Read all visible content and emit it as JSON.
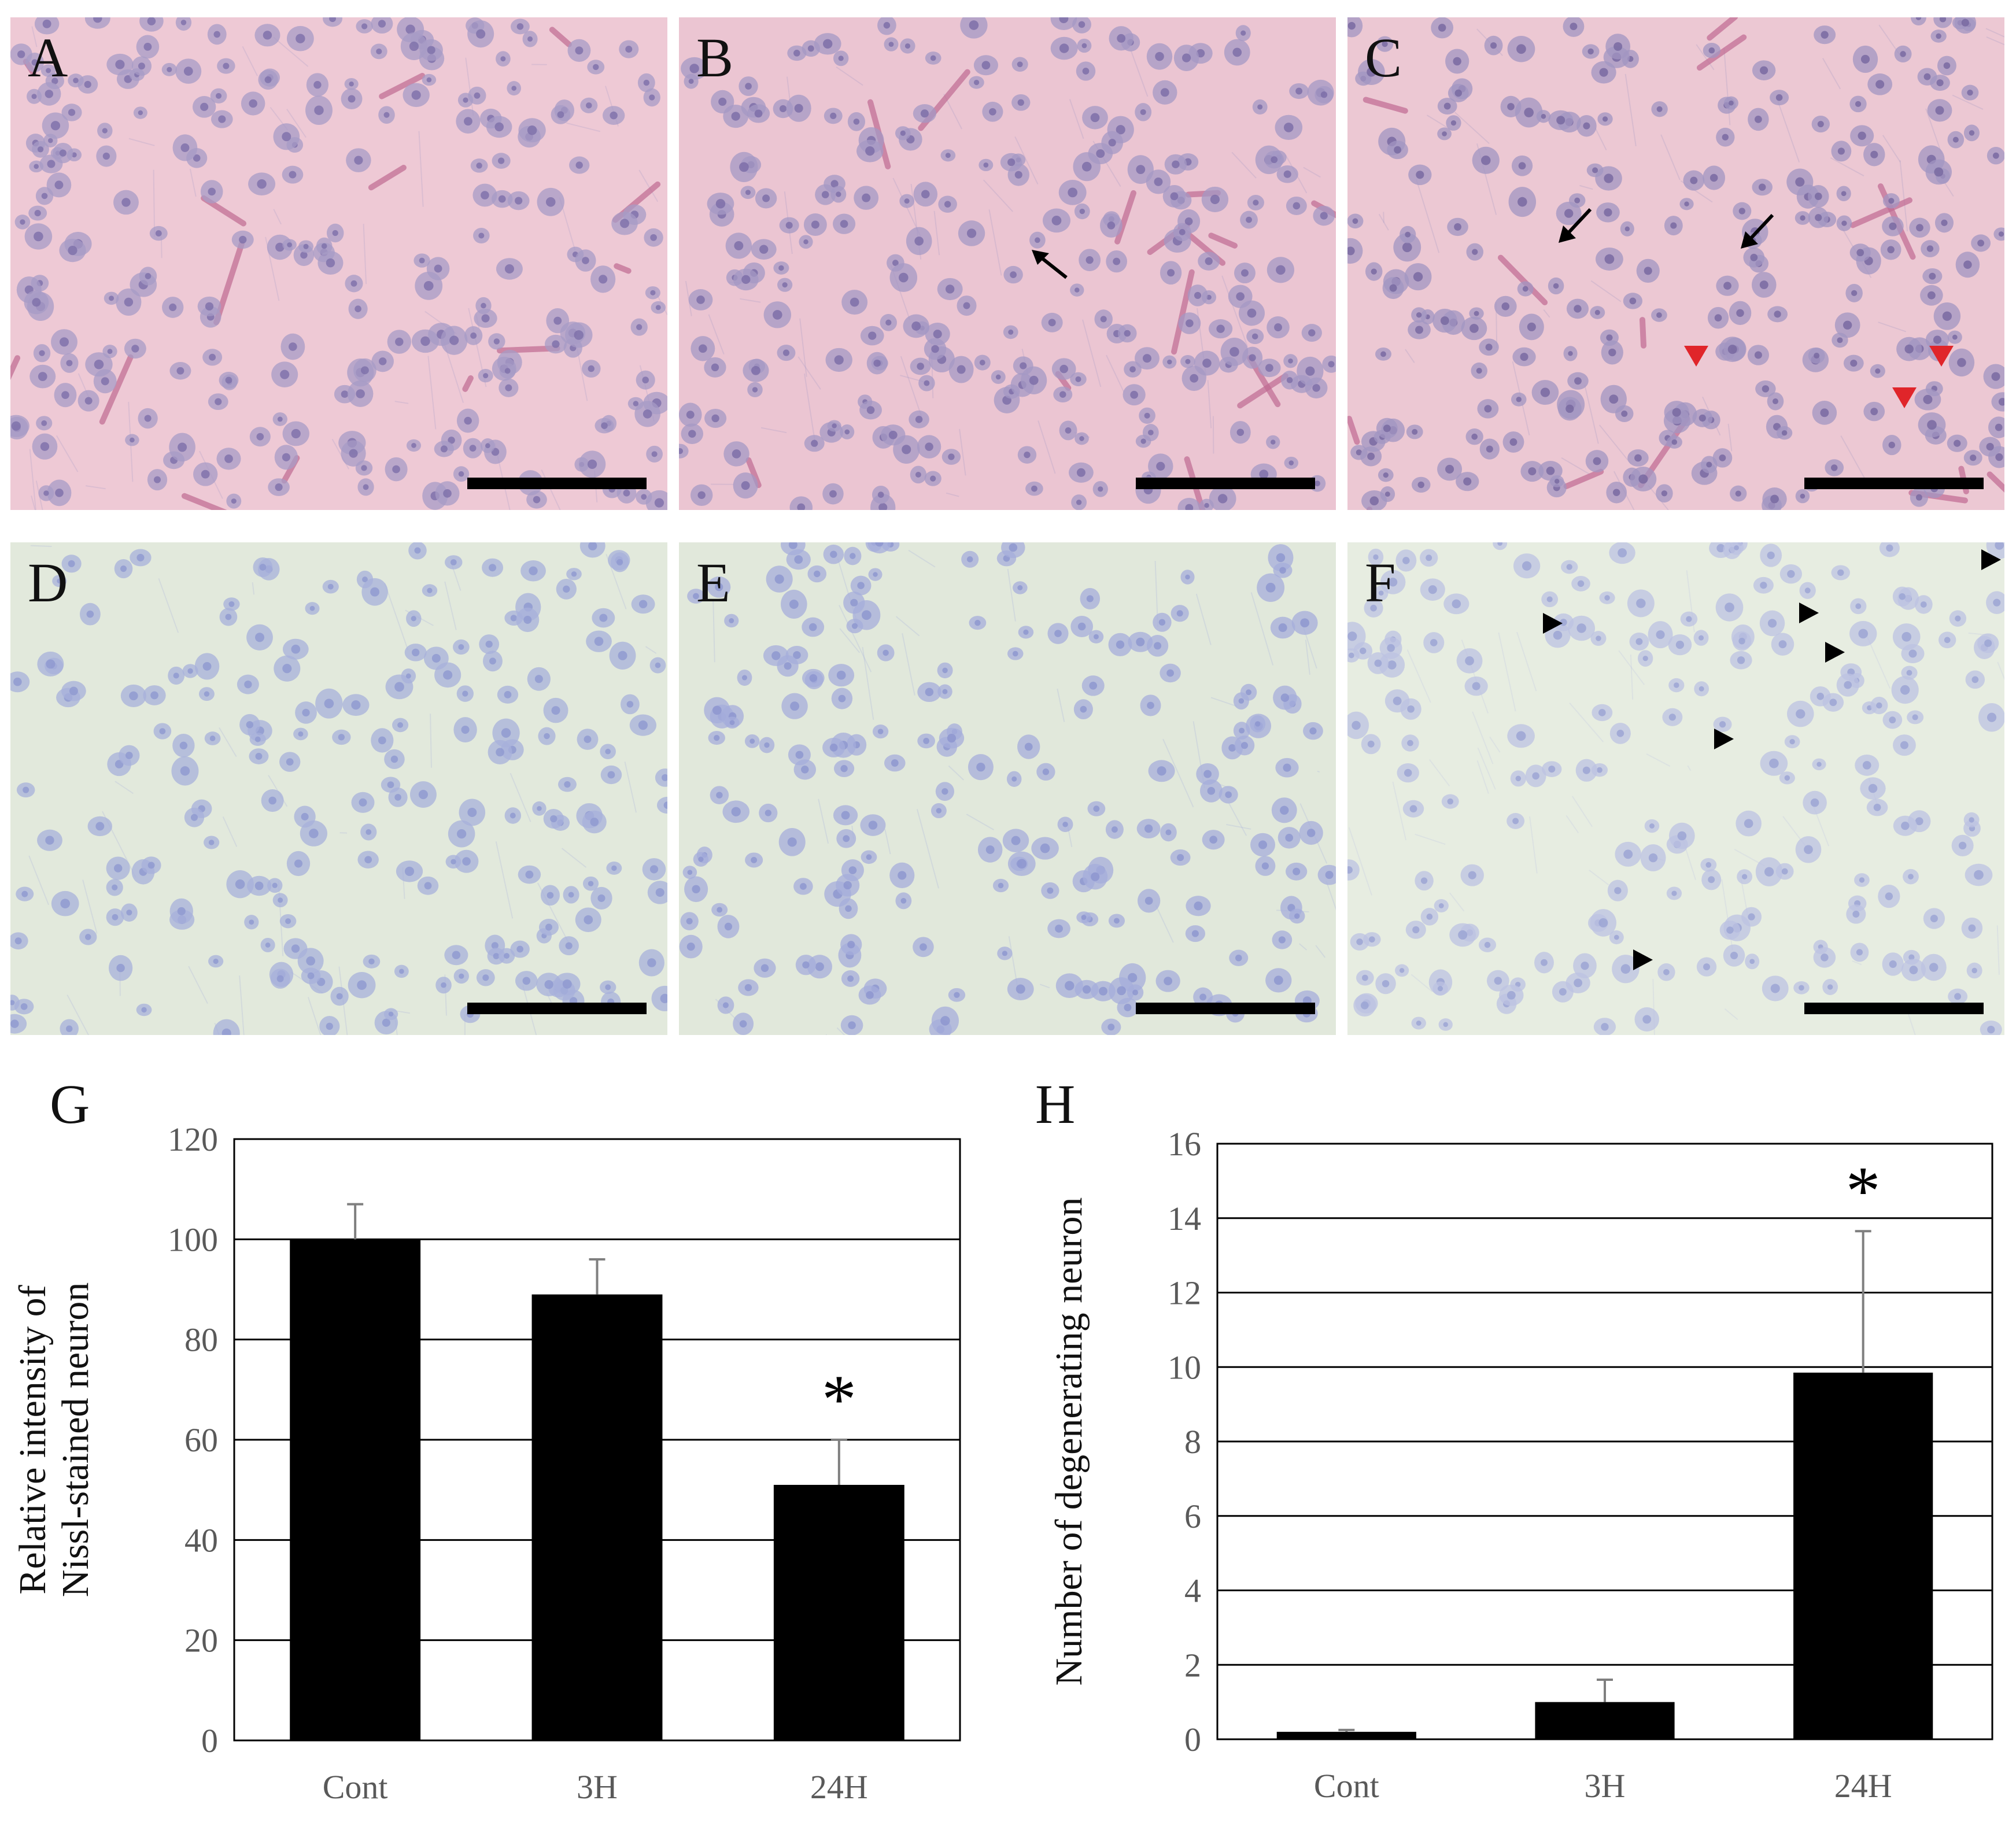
{
  "panels": [
    {
      "letter": "A",
      "stain": "he",
      "bg": "#eec9d5",
      "cell": "#a79bc6",
      "nucleus": "#7d6fa9"
    },
    {
      "letter": "B",
      "stain": "he",
      "bg": "#ebc5d2",
      "cell": "#a498c4",
      "nucleus": "#7a6ca6"
    },
    {
      "letter": "C",
      "stain": "he",
      "bg": "#ecc8d3",
      "cell": "#a195c2",
      "nucleus": "#76679f"
    },
    {
      "letter": "D",
      "stain": "nissl",
      "bg": "#e2e9dc",
      "cell": "#a7b0db",
      "nucleus": "#8f98cf"
    },
    {
      "letter": "E",
      "stain": "nissl",
      "bg": "#e1e8db",
      "cell": "#a5aedb",
      "nucleus": "#8c95ce"
    },
    {
      "letter": "F",
      "stain": "nissl",
      "bg": "#e7ede1",
      "cell": "#bcc2e2",
      "nucleus": "#9aa2d3"
    }
  ],
  "chart_data": [
    {
      "type": "bar",
      "panel_letter": "G",
      "categories": [
        "Cont",
        "3H",
        "24H"
      ],
      "values": [
        100,
        89,
        51
      ],
      "errors": [
        7,
        7,
        9
      ],
      "significance": [
        "",
        "",
        "*"
      ],
      "ylabel_lines": [
        "Relative intensity of",
        "Nissl-stained neuron"
      ],
      "ylim": [
        0,
        120
      ],
      "yticks": [
        0,
        20,
        40,
        60,
        80,
        100,
        120
      ],
      "grid": true,
      "bar_color": "#000000"
    },
    {
      "type": "bar",
      "panel_letter": "H",
      "categories": [
        "Cont",
        "3H",
        "24H"
      ],
      "values": [
        0.2,
        1.0,
        9.85
      ],
      "errors": [
        0.05,
        0.6,
        3.8
      ],
      "significance": [
        "",
        "",
        "*"
      ],
      "ylabel_lines": [
        "Number of degenerating neuron"
      ],
      "ylim": [
        0,
        16
      ],
      "yticks": [
        0,
        2,
        4,
        6,
        8,
        10,
        12,
        14,
        16
      ],
      "grid": true,
      "bar_color": "#000000"
    }
  ]
}
